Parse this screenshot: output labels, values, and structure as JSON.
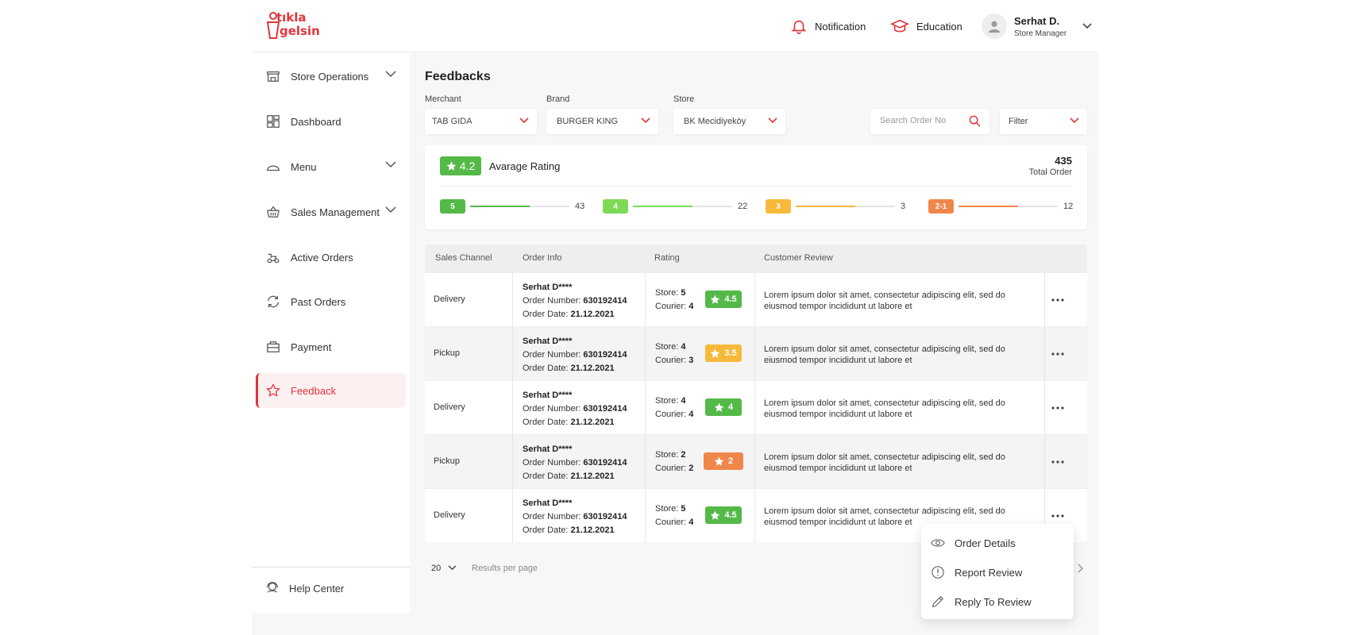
{
  "brand": {
    "logo_line1": "tıkla",
    "logo_line2": "gelsin",
    "accent": "#e0353b"
  },
  "header": {
    "notification_label": "Notification",
    "education_label": "Education",
    "user": {
      "name": "Serhat D.",
      "role": "Store Manager"
    }
  },
  "sidebar": {
    "items": [
      {
        "label": "Store Operations",
        "icon": "store-icon",
        "has_chevron": true
      },
      {
        "label": "Dashboard",
        "icon": "dashboard-icon",
        "has_chevron": false
      },
      {
        "label": "Menu",
        "icon": "menu-icon",
        "has_chevron": true
      },
      {
        "label": "Sales Management",
        "icon": "basket-icon",
        "has_chevron": true
      },
      {
        "label": "Active Orders",
        "icon": "courier-icon",
        "has_chevron": false
      },
      {
        "label": "Past Orders",
        "icon": "refresh-icon",
        "has_chevron": false
      },
      {
        "label": "Payment",
        "icon": "wallet-icon",
        "has_chevron": false
      },
      {
        "label": "Feedback",
        "icon": "star-icon",
        "has_chevron": false,
        "active": true
      }
    ],
    "help_label": "Help Center"
  },
  "page": {
    "title": "Feedbacks"
  },
  "filters": {
    "merchant": {
      "label": "Merchant",
      "value": "TAB GIDA"
    },
    "brand": {
      "label": "Brand",
      "value": "BURGER KING"
    },
    "store": {
      "label": "Store",
      "value": "BK Mecidiyeköy"
    },
    "search_placeholder": "Search Order No",
    "filter_label": "Filter"
  },
  "summary": {
    "average": "4.2",
    "average_label": "Avarage Rating",
    "total": "435",
    "total_label": "Total Order",
    "distribution": [
      {
        "label": "5",
        "count": "43",
        "fill": 0.6,
        "color": "#54b948"
      },
      {
        "label": "4",
        "count": "22",
        "fill": 0.6,
        "color": "#7ed957"
      },
      {
        "label": "3",
        "count": "3",
        "fill": 0.6,
        "color": "#f6b93b"
      },
      {
        "label": "2-1",
        "count": "12",
        "fill": 0.6,
        "color": "#f0874a"
      }
    ]
  },
  "table": {
    "headers": [
      "Sales Channel",
      "Order Info",
      "Rating",
      "Customer Review"
    ],
    "order_number_label": "Order Number:",
    "order_date_label": "Order Date:",
    "store_label": "Store:",
    "courier_label": "Courier:",
    "rows": [
      {
        "channel": "Delivery",
        "customer": "Serhat D****",
        "order_number": "630192414",
        "order_date": "21.12.2021",
        "store": "5",
        "courier": "4",
        "rating": "4.5",
        "color": "#54b948",
        "review": "Lorem ipsum dolor sit amet, consectetur adipiscing elit, sed do eiusmod tempor incididunt ut labore et"
      },
      {
        "channel": "Pickup",
        "customer": "Serhat D****",
        "order_number": "630192414",
        "order_date": "21.12.2021",
        "store": "4",
        "courier": "3",
        "rating": "3.5",
        "color": "#f6b93b",
        "review": "Lorem ipsum dolor sit amet, consectetur adipiscing elit, sed do eiusmod tempor incididunt ut labore et"
      },
      {
        "channel": "Delivery",
        "customer": "Serhat D****",
        "order_number": "630192414",
        "order_date": "21.12.2021",
        "store": "4",
        "courier": "4",
        "rating": "4",
        "color": "#54b948",
        "review": "Lorem ipsum dolor sit amet, consectetur adipiscing elit, sed do eiusmod tempor incididunt ut labore et"
      },
      {
        "channel": "Pickup",
        "customer": "Serhat D****",
        "order_number": "630192414",
        "order_date": "21.12.2021",
        "store": "2",
        "courier": "2",
        "rating": "2",
        "color": "#f0874a",
        "review": "Lorem ipsum dolor sit amet, consectetur adipiscing elit, sed do eiusmod tempor incididunt ut labore et"
      },
      {
        "channel": "Delivery",
        "customer": "Serhat D****",
        "order_number": "630192414",
        "order_date": "21.12.2021",
        "store": "5",
        "courier": "4",
        "rating": "4.5",
        "color": "#54b948",
        "review": "Lorem ipsum dolor sit amet, consectetur adipiscing elit, sed do eiusmod tempor incididunt ut labore et"
      }
    ]
  },
  "pagination": {
    "per_page": "20",
    "per_page_label": "Results per page"
  },
  "context_menu": {
    "items": [
      {
        "label": "Order Details",
        "icon": "eye-icon"
      },
      {
        "label": "Report Review",
        "icon": "alert-icon"
      },
      {
        "label": "Reply To Review",
        "icon": "pencil-icon"
      }
    ]
  }
}
